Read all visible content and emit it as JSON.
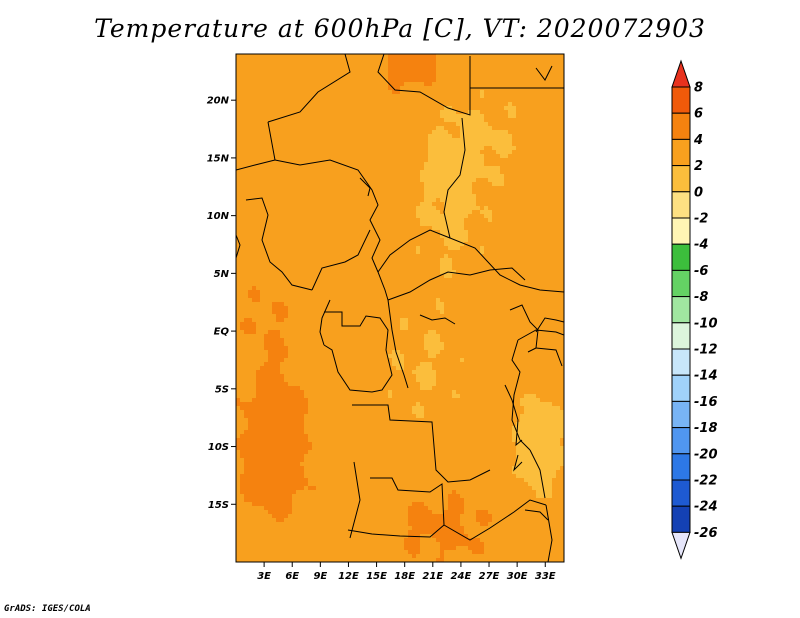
{
  "title": "Temperature at 600hPa [C], VT: 2020072903",
  "footer": "GrADS: IGES/COLA",
  "map": {
    "lat_range": [
      -20,
      24
    ],
    "lon_range": [
      0,
      35
    ],
    "lat_ticks": [
      {
        "value": 20,
        "label": "20N"
      },
      {
        "value": 15,
        "label": "15N"
      },
      {
        "value": 10,
        "label": "10N"
      },
      {
        "value": 5,
        "label": "5N"
      },
      {
        "value": 0,
        "label": "EQ"
      },
      {
        "value": -5,
        "label": "5S"
      },
      {
        "value": -10,
        "label": "10S"
      },
      {
        "value": -15,
        "label": "15S"
      }
    ],
    "lon_ticks": [
      {
        "value": 3,
        "label": "3E"
      },
      {
        "value": 6,
        "label": "6E"
      },
      {
        "value": 9,
        "label": "9E"
      },
      {
        "value": 12,
        "label": "12E"
      },
      {
        "value": 15,
        "label": "15E"
      },
      {
        "value": 18,
        "label": "18E"
      },
      {
        "value": 21,
        "label": "21E"
      },
      {
        "value": 24,
        "label": "24E"
      },
      {
        "value": 27,
        "label": "27E"
      },
      {
        "value": 30,
        "label": "30E"
      },
      {
        "value": 33,
        "label": "33E"
      }
    ]
  },
  "colorbar": {
    "labels": [
      "8",
      "6",
      "4",
      "2",
      "0",
      "-2",
      "-4",
      "-6",
      "-8",
      "-10",
      "-12",
      "-14",
      "-16",
      "-18",
      "-20",
      "-22",
      "-24",
      "-26"
    ],
    "colors": [
      "#e8321e",
      "#f05a0a",
      "#f5820f",
      "#f8a01e",
      "#fbbe3c",
      "#fde082",
      "#fff5b4",
      "#3cbe3c",
      "#64d264",
      "#a0e6a0",
      "#dcf5dc",
      "#c8e6fa",
      "#a0d2fa",
      "#78b4f5",
      "#5096f0",
      "#2d78e6",
      "#1e5ad2",
      "#1441b4",
      "#0a1e78",
      "#e6e6fa"
    ]
  },
  "color_scale": {
    "bins": [
      -4,
      -2,
      0,
      2,
      4,
      6,
      8
    ],
    "colors": [
      "#fff5b4",
      "#fde082",
      "#fbbe3c",
      "#f8a01e",
      "#f5820f",
      "#f05a0a",
      "#e8321e"
    ]
  }
}
